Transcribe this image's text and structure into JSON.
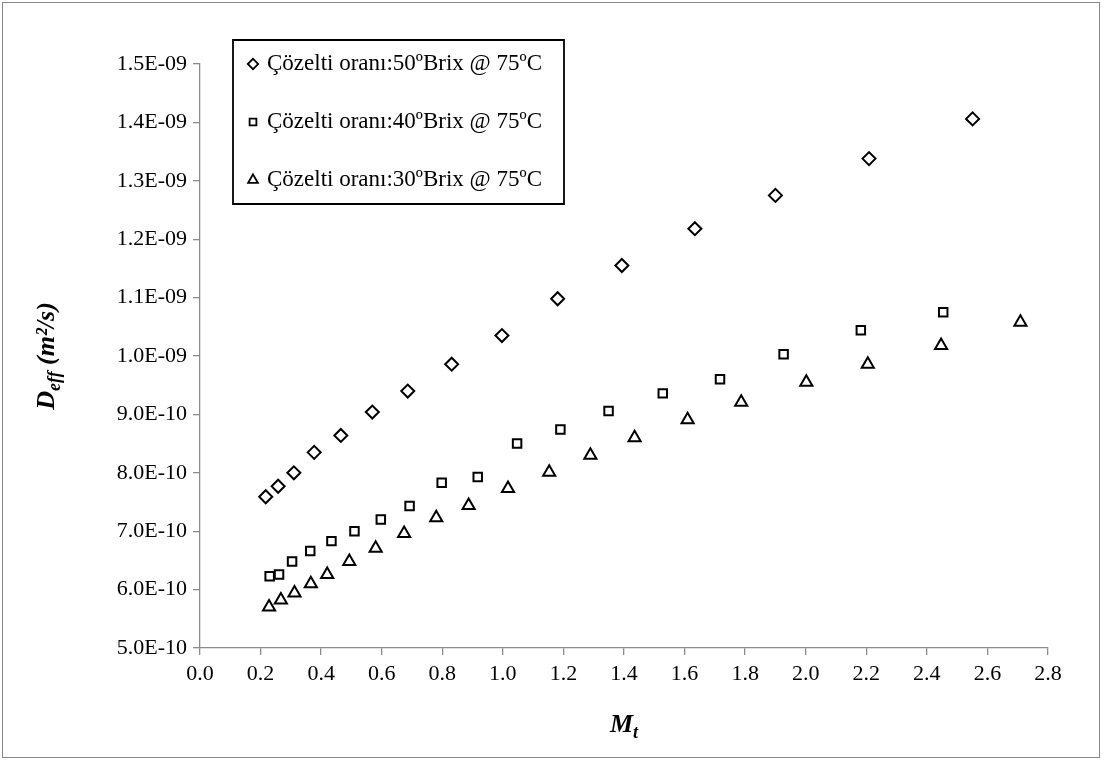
{
  "chart_data": {
    "type": "scatter",
    "xlabel": "M$_{t}$",
    "ylabel": "D$_{eff}$ (m²/s)",
    "legend": "top left",
    "grid": false,
    "xlim": [
      0,
      2.8
    ],
    "xticks": [
      {
        "value": 0,
        "label": "0.0"
      },
      {
        "value": 0.2,
        "label": "0.2"
      },
      {
        "value": 0.4,
        "label": "0.4"
      },
      {
        "value": 0.6,
        "label": "0.6"
      },
      {
        "value": 0.8,
        "label": "0.8"
      },
      {
        "value": 1,
        "label": "1.0"
      },
      {
        "value": 1.2,
        "label": "1.2"
      },
      {
        "value": 1.4,
        "label": "1.4"
      },
      {
        "value": 1.6,
        "label": "1.6"
      },
      {
        "value": 1.8,
        "label": "1.8"
      },
      {
        "value": 2,
        "label": "2.0"
      },
      {
        "value": 2.2,
        "label": "2.2"
      },
      {
        "value": 2.4,
        "label": "2.4"
      },
      {
        "value": 2.6,
        "label": "2.6"
      },
      {
        "value": 2.8,
        "label": "2.8"
      }
    ],
    "ylim": [
      5e-10,
      1.5e-09
    ],
    "yticks": [
      {
        "value": 5e-10,
        "label": "5.0E-10"
      },
      {
        "value": 6e-10,
        "label": "6.0E-10"
      },
      {
        "value": 7e-10,
        "label": "7.0E-10"
      },
      {
        "value": 8e-10,
        "label": "8.0E-10"
      },
      {
        "value": 9e-10,
        "label": "9.0E-10"
      },
      {
        "value": 1e-09,
        "label": "1.0E-09"
      },
      {
        "value": 1.1e-09,
        "label": "1.1E-09"
      },
      {
        "value": 1.2e-09,
        "label": "1.2E-09"
      },
      {
        "value": 1.3e-09,
        "label": "1.3E-09"
      },
      {
        "value": 1.4e-09,
        "label": "1.4E-09"
      },
      {
        "value": 1.5e-09,
        "label": "1.5E-09"
      }
    ],
    "series": [
      {
        "name": "Çözelti oranı:50ºBrix @ 75ºC",
        "color": "#000000",
        "marker": "diamond",
        "x": [
          0.217,
          0.258,
          0.31,
          0.377,
          0.465,
          0.569,
          0.686,
          0.831,
          0.997,
          1.181,
          1.393,
          1.634,
          1.9,
          2.209,
          2.551
        ],
        "values": [
          7.59e-10,
          7.77e-10,
          8e-10,
          8.35e-10,
          8.64e-10,
          9.04e-10,
          9.4e-10,
          9.86e-10,
          1.035e-09,
          1.098e-09,
          1.155e-09,
          1.218e-09,
          1.275e-09,
          1.338e-09,
          1.406e-09
        ]
      },
      {
        "name": "Çözelti oranı:40ºBrix @ 75ºC",
        "color": "#000000",
        "marker": "square",
        "x": [
          0.23,
          0.261,
          0.304,
          0.364,
          0.434,
          0.51,
          0.597,
          0.692,
          0.798,
          0.917,
          1.047,
          1.19,
          1.349,
          1.528,
          1.717,
          1.927,
          2.182,
          2.454
        ],
        "values": [
          6.23e-10,
          6.26e-10,
          6.48e-10,
          6.66e-10,
          6.83e-10,
          7e-10,
          7.2e-10,
          7.43e-10,
          7.83e-10,
          7.93e-10,
          8.5e-10,
          8.74e-10,
          9.06e-10,
          9.36e-10,
          9.6e-10,
          1.003e-09,
          1.044e-09,
          1.075e-09
        ]
      },
      {
        "name": "Çözelti oranı:30ºBrix @ 75ºC",
        "color": "#000000",
        "marker": "triangle",
        "x": [
          0.228,
          0.267,
          0.312,
          0.366,
          0.42,
          0.493,
          0.58,
          0.674,
          0.78,
          0.887,
          1.017,
          1.153,
          1.289,
          1.435,
          1.61,
          1.787,
          2.002,
          2.205,
          2.447,
          2.709
        ],
        "values": [
          5.7e-10,
          5.82e-10,
          5.94e-10,
          6.1e-10,
          6.26e-10,
          6.48e-10,
          6.71e-10,
          6.96e-10,
          7.23e-10,
          7.44e-10,
          7.73e-10,
          8.01e-10,
          8.3e-10,
          8.6e-10,
          8.91e-10,
          9.21e-10,
          9.55e-10,
          9.86e-10,
          1.018e-09,
          1.058e-09
        ]
      }
    ]
  }
}
